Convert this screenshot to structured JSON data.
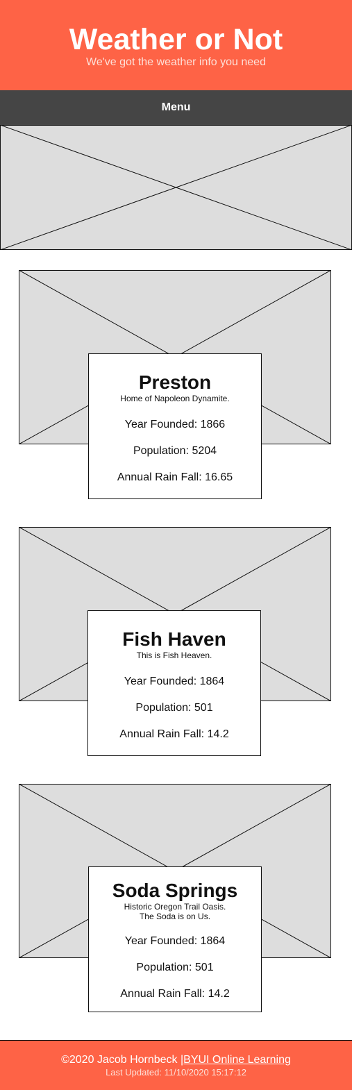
{
  "header": {
    "title": "Weather or Not",
    "tagline": "We've got the weather info you need"
  },
  "nav": {
    "menu_label": "Menu"
  },
  "towns": [
    {
      "name": "Preston",
      "motto_lines": [
        "Home of Napoleon Dynamite."
      ],
      "year_founded": "Year Founded: 1866",
      "population": "Population: 5204",
      "rainfall": "Annual Rain Fall: 16.65"
    },
    {
      "name": "Fish Haven",
      "motto_lines": [
        "This is Fish Heaven."
      ],
      "year_founded": "Year Founded: 1864",
      "population": "Population: 501",
      "rainfall": "Annual Rain Fall: 14.2"
    },
    {
      "name": "Soda Springs",
      "motto_lines": [
        "Historic Oregon Trail Oasis.",
        "The Soda is on Us."
      ],
      "year_founded": "Year Founded: 1864",
      "population": "Population: 501",
      "rainfall": "Annual Rain Fall: 14.2"
    }
  ],
  "footer": {
    "copyright": "©2020 Jacob Hornbeck ",
    "link_text": "|BYUI Online Learning",
    "last_updated": "Last Updated: 11/10/2020 15:17:12"
  },
  "colors": {
    "brand": "#fe6346",
    "nav": "#454545",
    "placeholder_fill": "#dddddd"
  }
}
